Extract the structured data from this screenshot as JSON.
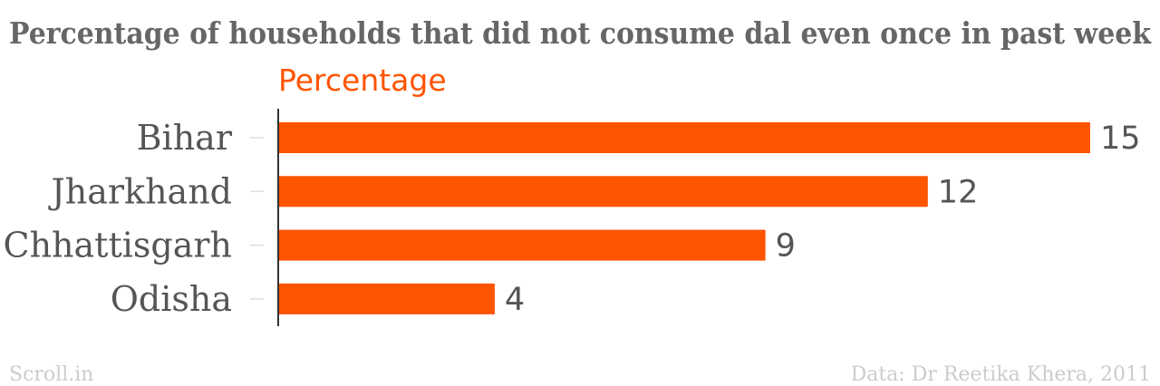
{
  "chart_data": {
    "type": "bar",
    "orientation": "horizontal",
    "title": "Percentage of households that did not consume dal even once in past week",
    "series": [
      {
        "name": "Percentage",
        "color": "#ff5400",
        "values": [
          15,
          12,
          9,
          4
        ]
      }
    ],
    "categories": [
      "Bihar",
      "Jharkhand",
      "Chhattisgarh",
      "Odisha"
    ],
    "xlim": [
      0,
      15
    ],
    "grid": false,
    "data_labels": [
      "15",
      "12",
      "9",
      "4"
    ]
  },
  "footer": {
    "source_left": "Scroll.in",
    "source_right": "Data: Dr Reetika Khera, 2011"
  }
}
